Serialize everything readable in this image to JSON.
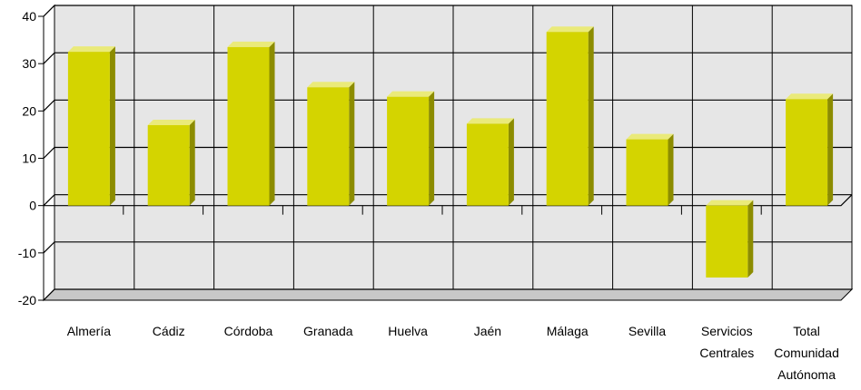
{
  "chart_data": {
    "type": "bar",
    "title": "",
    "xlabel": "",
    "ylabel": "",
    "ylim": [
      -20,
      40
    ],
    "yticks": [
      "40",
      "30",
      "20",
      "10",
      "0",
      "-10",
      "-20"
    ],
    "categories": [
      [
        "Almería"
      ],
      [
        "Cádiz"
      ],
      [
        "Córdoba"
      ],
      [
        "Granada"
      ],
      [
        "Huelva"
      ],
      [
        "Jaén"
      ],
      [
        "Málaga"
      ],
      [
        "Sevilla"
      ],
      [
        "Servicios",
        "Centrales"
      ],
      [
        "Total",
        "Comunidad",
        "Autónoma"
      ]
    ],
    "values": [
      32.5,
      17,
      33.5,
      25,
      23,
      17.3,
      36.7,
      14,
      -15.2,
      22.5
    ],
    "grid": true,
    "legend": "none",
    "colors": {
      "bar_front": "#d4d400",
      "bar_side": "#8c8c00",
      "bar_top": "#eaea7a",
      "plot_bg": "#e6e6e6",
      "floor": "#c8c8c8",
      "grid": "#000000"
    }
  }
}
